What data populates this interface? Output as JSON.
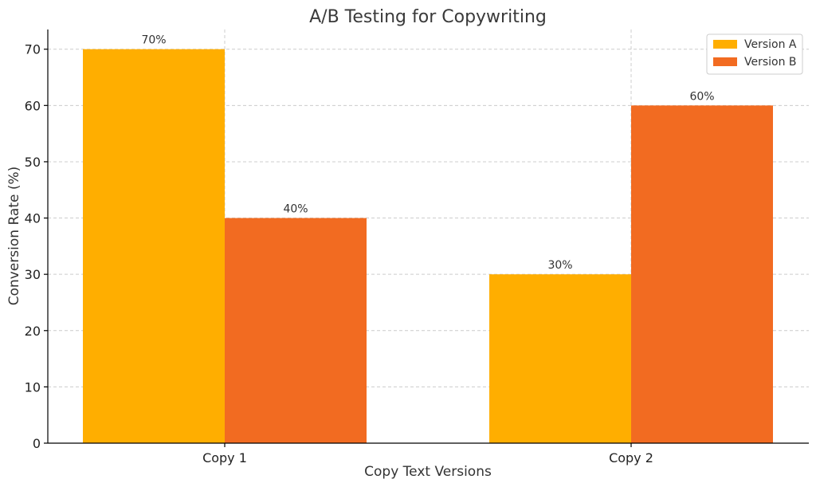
{
  "chart_data": {
    "type": "bar",
    "title": "A/B Testing for Copywriting",
    "xlabel": "Copy Text Versions",
    "ylabel": "Conversion Rate (%)",
    "categories": [
      "Copy 1",
      "Copy 2"
    ],
    "series": [
      {
        "name": "Version A",
        "values": [
          70,
          30
        ],
        "color": "#FFAE00",
        "labels": [
          "70%",
          "30%"
        ]
      },
      {
        "name": "Version B",
        "values": [
          40,
          60
        ],
        "color": "#F26B21",
        "labels": [
          "40%",
          "60%"
        ]
      }
    ],
    "ylim": [
      0,
      73.5
    ],
    "yticks": [
      0,
      10,
      20,
      30,
      40,
      50,
      60,
      70
    ],
    "grid": true,
    "legend_position": "top-right"
  }
}
